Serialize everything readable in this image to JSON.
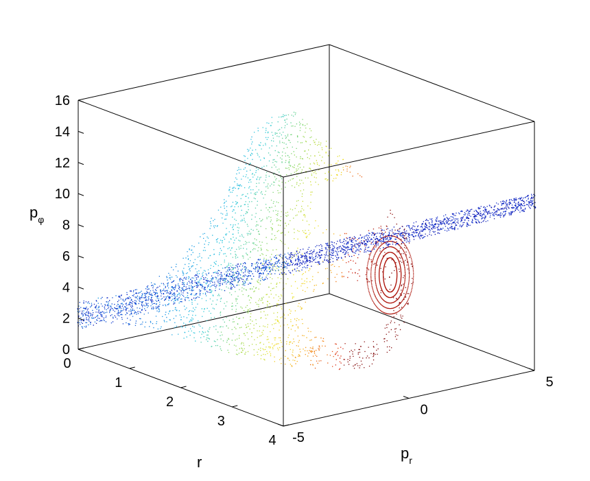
{
  "chart_data": {
    "type": "scatter",
    "projection": "3d",
    "title": "",
    "xlabel": "r",
    "ylabel": "p_r",
    "zlabel": "p_φ",
    "ylabel_parts": {
      "base": "p",
      "sub": "r"
    },
    "zlabel_parts": {
      "base": "p",
      "sub": "φ"
    },
    "xlim": [
      0,
      4
    ],
    "ylim": [
      -5,
      5
    ],
    "zlim": [
      0,
      16
    ],
    "x_ticks": [
      "0",
      "1",
      "2",
      "3",
      "4"
    ],
    "y_ticks": [
      "-5",
      "0",
      "5"
    ],
    "z_ticks": [
      "0",
      "2",
      "4",
      "6",
      "8",
      "10",
      "12",
      "14",
      "16"
    ],
    "grid": false,
    "box": true,
    "colormap": "jet",
    "color_encodes": "p_r (blue = negative, red = positive)",
    "colors": {
      "blue": "#0a0a9a",
      "cyan": "#2cc6e6",
      "green": "#88d86a",
      "yellow": "#f2e11a",
      "orange": "#f07a1a",
      "red": "#d01008",
      "dark_red": "#8a0a0a"
    },
    "series": [
      {
        "component": "main-surface",
        "description_points": [
          {
            "r": 0.0,
            "p_r": -5.0,
            "p_phi": 0.6
          },
          {
            "r": 0.6,
            "p_r": -3.0,
            "p_phi": 4.0
          },
          {
            "r": 1.6,
            "p_r": 0.0,
            "p_phi": 14.5
          },
          {
            "r": 2.6,
            "p_r": 3.0,
            "p_phi": 9.0
          },
          {
            "r": 3.8,
            "p_r": 5.0,
            "p_phi": 2.0
          },
          {
            "r": 4.0,
            "p_r": 0.0,
            "p_phi": 0.0
          }
        ]
      },
      {
        "component": "blue-band",
        "description_points": [
          {
            "r": 0.0,
            "p_r": -5.0,
            "p_phi": 1.8
          },
          {
            "r": 2.0,
            "p_r": 0.0,
            "p_phi": 5.5
          },
          {
            "r": 4.0,
            "p_r": 5.0,
            "p_phi": 11.0
          }
        ]
      }
    ]
  }
}
